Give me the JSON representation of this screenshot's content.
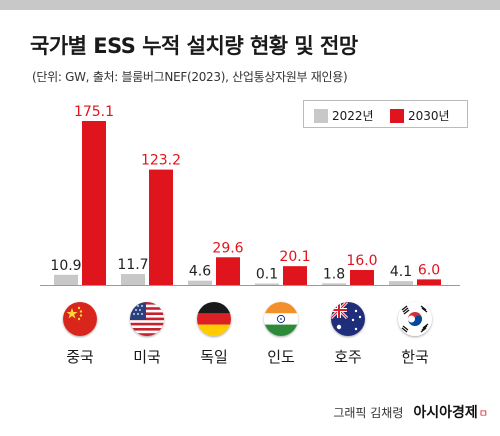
{
  "title": "국가별 ESS 누적 설치량 현황 및 전망",
  "subtitle": "(단위: GW, 출처: 블룸버그NEF(2023), 산업통상자원부 재인용)",
  "colors": {
    "series_2022": "#c8c8c8",
    "series_2030": "#e0141d",
    "label_2022": "#222222",
    "label_2030": "#e0141d"
  },
  "chart_data": {
    "type": "bar",
    "categories": [
      "중국",
      "미국",
      "독일",
      "인도",
      "호주",
      "한국"
    ],
    "series": [
      {
        "name": "2022년",
        "values": [
          10.9,
          11.7,
          4.6,
          0.1,
          1.8,
          4.1
        ],
        "labels": [
          "10.9",
          "11.7",
          "4.6",
          "0.1",
          "1.8",
          "4.1"
        ]
      },
      {
        "name": "2030년",
        "values": [
          175.1,
          123.2,
          29.6,
          20.1,
          16.0,
          6.0
        ],
        "labels": [
          "175.1",
          "123.2",
          "29.6",
          "20.1",
          "16.0",
          "6.0"
        ]
      }
    ],
    "ylim": [
      0,
      175.1
    ],
    "legend_position": "top-right",
    "flags": [
      "china-flag-icon",
      "usa-flag-icon",
      "germany-flag-icon",
      "india-flag-icon",
      "australia-flag-icon",
      "korea-flag-icon"
    ]
  },
  "credit": {
    "text": "그래픽 김채령",
    "brand": "아시아경제",
    "brand_mark": "ㅁ"
  }
}
